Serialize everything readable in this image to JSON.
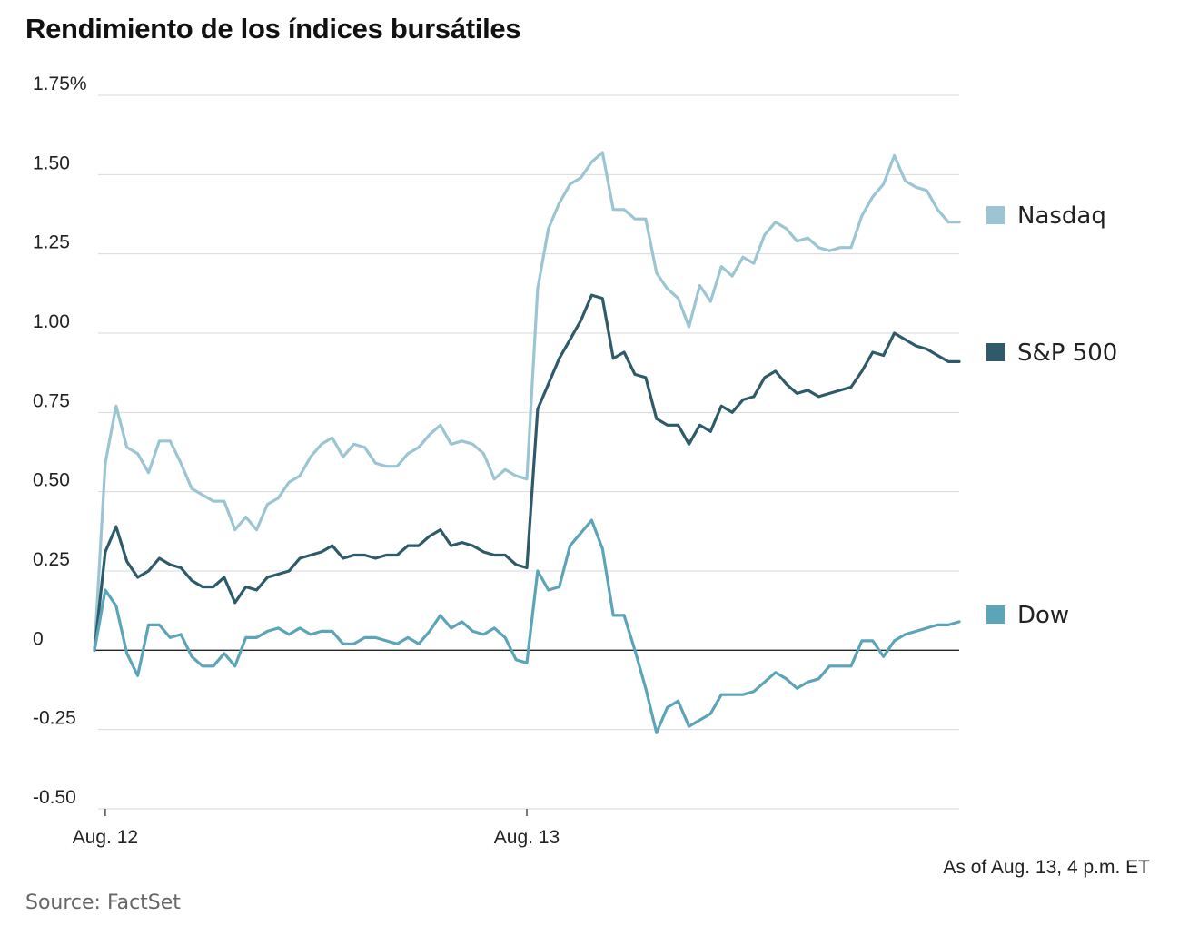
{
  "chart_data": {
    "type": "line",
    "title": "Rendimiento de los índices bursátiles",
    "xlabel": "",
    "ylabel": "",
    "ylim": [
      -0.5,
      1.75
    ],
    "y_ticks": [
      "1.75%",
      "1.50",
      "1.25",
      "1.00",
      "0.75",
      "0.50",
      "0.25",
      "0",
      "-0.25",
      "-0.50"
    ],
    "y_tick_values": [
      1.75,
      1.5,
      1.25,
      1.0,
      0.75,
      0.5,
      0.25,
      0,
      -0.25,
      -0.5
    ],
    "x_ticks": [
      "Aug. 12",
      "Aug. 13"
    ],
    "x_tick_index": [
      1,
      40
    ],
    "grid": true,
    "legend_placement": "right",
    "series": [
      {
        "name": "Nasdaq",
        "color": "#9cc5d3",
        "values": [
          0,
          0.59,
          0.77,
          0.64,
          0.62,
          0.56,
          0.66,
          0.66,
          0.59,
          0.51,
          0.49,
          0.47,
          0.47,
          0.38,
          0.42,
          0.38,
          0.46,
          0.48,
          0.53,
          0.55,
          0.61,
          0.65,
          0.67,
          0.61,
          0.65,
          0.64,
          0.59,
          0.58,
          0.58,
          0.62,
          0.64,
          0.68,
          0.71,
          0.65,
          0.66,
          0.65,
          0.62,
          0.54,
          0.57,
          0.55,
          0.54,
          1.14,
          1.33,
          1.41,
          1.47,
          1.49,
          1.54,
          1.57,
          1.39,
          1.39,
          1.36,
          1.36,
          1.19,
          1.14,
          1.11,
          1.02,
          1.15,
          1.1,
          1.21,
          1.18,
          1.24,
          1.22,
          1.31,
          1.35,
          1.33,
          1.29,
          1.3,
          1.27,
          1.26,
          1.27,
          1.27,
          1.37,
          1.43,
          1.47,
          1.56,
          1.48,
          1.46,
          1.45,
          1.39,
          1.35,
          1.35
        ]
      },
      {
        "name": "S&P 500",
        "color": "#2e5a69",
        "values": [
          0,
          0.31,
          0.39,
          0.28,
          0.23,
          0.25,
          0.29,
          0.27,
          0.26,
          0.22,
          0.2,
          0.2,
          0.23,
          0.15,
          0.2,
          0.19,
          0.23,
          0.24,
          0.25,
          0.29,
          0.3,
          0.31,
          0.33,
          0.29,
          0.3,
          0.3,
          0.29,
          0.3,
          0.3,
          0.33,
          0.33,
          0.36,
          0.38,
          0.33,
          0.34,
          0.33,
          0.31,
          0.3,
          0.3,
          0.27,
          0.26,
          0.76,
          0.84,
          0.92,
          0.98,
          1.04,
          1.12,
          1.11,
          0.92,
          0.94,
          0.87,
          0.86,
          0.73,
          0.71,
          0.71,
          0.65,
          0.71,
          0.69,
          0.77,
          0.75,
          0.79,
          0.8,
          0.86,
          0.88,
          0.84,
          0.81,
          0.82,
          0.8,
          0.81,
          0.82,
          0.83,
          0.88,
          0.94,
          0.93,
          1.0,
          0.98,
          0.96,
          0.95,
          0.93,
          0.91,
          0.91
        ]
      },
      {
        "name": "Dow",
        "color": "#5ca4b8",
        "values": [
          0,
          0.19,
          0.14,
          -0.01,
          -0.08,
          0.08,
          0.08,
          0.04,
          0.05,
          -0.02,
          -0.05,
          -0.05,
          -0.01,
          -0.05,
          0.04,
          0.04,
          0.06,
          0.07,
          0.05,
          0.07,
          0.05,
          0.06,
          0.06,
          0.02,
          0.02,
          0.04,
          0.04,
          0.03,
          0.02,
          0.04,
          0.02,
          0.06,
          0.11,
          0.07,
          0.09,
          0.06,
          0.05,
          0.07,
          0.04,
          -0.03,
          -0.04,
          0.25,
          0.19,
          0.2,
          0.33,
          0.37,
          0.41,
          0.32,
          0.11,
          0.11,
          0.0,
          -0.12,
          -0.26,
          -0.18,
          -0.16,
          -0.24,
          -0.22,
          -0.2,
          -0.14,
          -0.14,
          -0.14,
          -0.13,
          -0.1,
          -0.07,
          -0.09,
          -0.12,
          -0.1,
          -0.09,
          -0.05,
          -0.05,
          -0.05,
          0.03,
          0.03,
          -0.02,
          0.03,
          0.05,
          0.06,
          0.07,
          0.08,
          0.08,
          0.09
        ]
      }
    ],
    "note": "As of Aug. 13, 4 p.m. ET",
    "source": "Source: FactSet"
  }
}
